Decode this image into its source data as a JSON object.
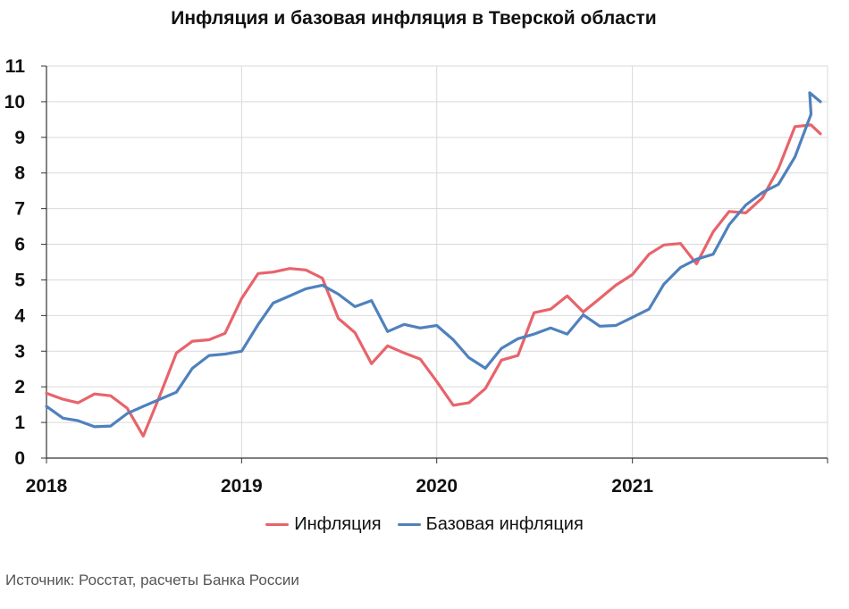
{
  "chart_data": {
    "type": "line",
    "title": "Инфляция и базовая инфляция в Тверской области",
    "source": "Источник: Росстат, расчеты Банка России",
    "ylim": [
      0,
      11
    ],
    "yticks": [
      0,
      1,
      2,
      3,
      4,
      5,
      6,
      7,
      8,
      9,
      10,
      11
    ],
    "xticks": [
      "2018",
      "2019",
      "2020",
      "2021"
    ],
    "xlim": [
      "2018-01",
      "2022-01"
    ],
    "grid": true,
    "legend_position": "bottom",
    "x": [
      "2018-01",
      "2018-02",
      "2018-03",
      "2018-04",
      "2018-05",
      "2018-06",
      "2018-07",
      "2018-08",
      "2018-09",
      "2018-10",
      "2018-11",
      "2018-12",
      "2019-01",
      "2019-02",
      "2019-03",
      "2019-04",
      "2019-05",
      "2019-06",
      "2019-07",
      "2019-08",
      "2019-09",
      "2019-10",
      "2019-11",
      "2019-12",
      "2020-01",
      "2020-02",
      "2020-03",
      "2020-04",
      "2020-05",
      "2020-06",
      "2020-07",
      "2020-08",
      "2020-09",
      "2020-10",
      "2020-11",
      "2020-12",
      "2021-01",
      "2021-02",
      "2021-03",
      "2021-04",
      "2021-05",
      "2021-06",
      "2021-07",
      "2021-08",
      "2021-09",
      "2021-10",
      "2021-11",
      "2021-12"
    ],
    "series": [
      {
        "name": "Инфляция",
        "color": "#E8636B",
        "values": [
          1.82,
          1.65,
          1.55,
          1.8,
          1.75,
          1.4,
          0.62,
          1.75,
          2.95,
          3.28,
          3.32,
          3.5,
          4.48,
          5.18,
          5.22,
          5.32,
          5.28,
          5.05,
          3.92,
          3.52,
          2.65,
          3.15,
          2.95,
          2.78,
          2.15,
          1.48,
          1.55,
          1.95,
          2.75,
          2.88,
          4.08,
          4.18,
          4.55,
          4.1,
          4.48,
          4.85,
          5.15,
          5.72,
          5.98,
          6.02,
          5.45,
          6.35,
          6.92,
          6.88,
          7.3,
          8.12,
          9.3,
          9.35
        ]
      },
      {
        "name": "Базовая инфляция",
        "color": "#4F81BD",
        "values": [
          1.45,
          1.12,
          1.05,
          0.88,
          0.9,
          1.25,
          1.45,
          1.65,
          1.85,
          2.52,
          2.88,
          2.92,
          3.0,
          3.75,
          4.35,
          4.55,
          4.75,
          4.85,
          4.6,
          4.25,
          4.42,
          3.55,
          3.75,
          3.65,
          3.72,
          3.32,
          2.82,
          2.52,
          3.08,
          3.35,
          3.48,
          3.65,
          3.48,
          4.02,
          3.7,
          3.72,
          3.95,
          4.18,
          4.88,
          5.35,
          5.58,
          5.72,
          6.55,
          7.1,
          7.45,
          7.68,
          8.45,
          9.65
        ]
      }
    ],
    "series_tail": {
      "Инфляция": [
        9.1
      ],
      "Базовая инфляция": [
        10.25,
        10.0
      ]
    }
  }
}
